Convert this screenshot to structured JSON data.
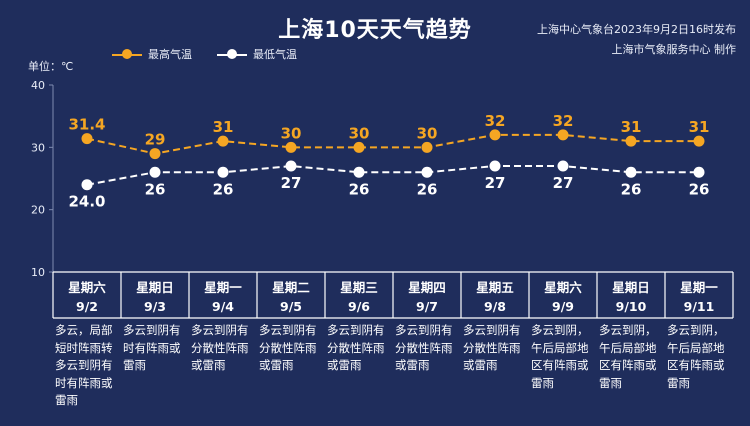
{
  "title": "上海10天天气趋势",
  "source_lines": [
    "上海中心气象台2023年9月2日16时发布",
    "上海市气象服务中心 制作"
  ],
  "unit_label": "单位：℃",
  "colors": {
    "background": "#1f2d5c",
    "high": "#f5a623",
    "low": "#ffffff",
    "grid": "#7f8bb0"
  },
  "chart_data": {
    "type": "line",
    "y_ticks": [
      10,
      20,
      30,
      40
    ],
    "ylim": [
      10,
      40
    ],
    "categories": [
      "9/2",
      "9/3",
      "9/4",
      "9/5",
      "9/6",
      "9/7",
      "9/8",
      "9/9",
      "9/10",
      "9/11"
    ],
    "weekdays": [
      "星期六",
      "星期日",
      "星期一",
      "星期二",
      "星期三",
      "星期四",
      "星期五",
      "星期六",
      "星期日",
      "星期一"
    ],
    "series": [
      {
        "name": "最高气温",
        "values": [
          31.4,
          29,
          31,
          30,
          30,
          30,
          32,
          32,
          31,
          31
        ],
        "labels": [
          "31.4",
          "29",
          "31",
          "30",
          "30",
          "30",
          "32",
          "32",
          "31",
          "31"
        ]
      },
      {
        "name": "最低气温",
        "values": [
          24.0,
          26,
          26,
          27,
          26,
          26,
          27,
          27,
          26,
          26
        ],
        "labels": [
          "24.0",
          "26",
          "26",
          "27",
          "26",
          "26",
          "27",
          "27",
          "26",
          "26"
        ]
      }
    ],
    "descriptions": [
      "多云，局部短时阵雨转多云到阴有时有阵雨或雷雨",
      "多云到阴有时有阵雨或雷雨",
      "多云到阴有分散性阵雨或雷雨",
      "多云到阴有分散性阵雨或雷雨",
      "多云到阴有分散性阵雨或雷雨",
      "多云到阴有分散性阵雨或雷雨",
      "多云到阴有分散性阵雨或雷雨",
      "多云到阴，午后局部地区有阵雨或雷雨",
      "多云到阴，午后局部地区有阵雨或雷雨",
      "多云到阴，午后局部地区有阵雨或雷雨"
    ]
  }
}
